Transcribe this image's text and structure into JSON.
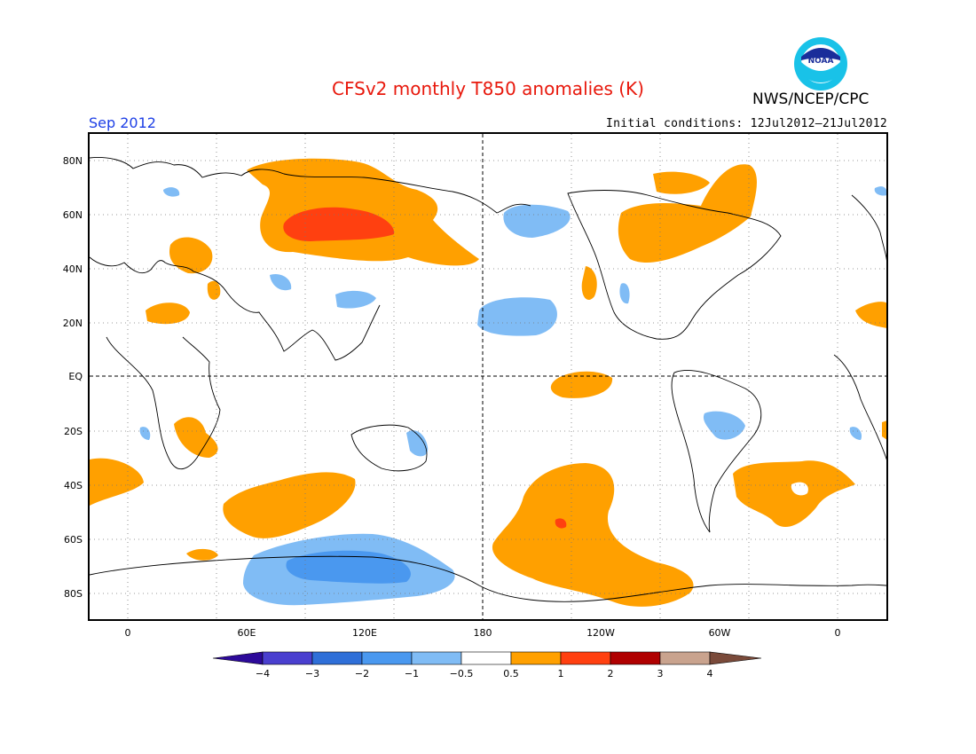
{
  "header": {
    "title": "CFSv2 monthly T850 anomalies (K)",
    "agency": "NWS/NCEP/CPC",
    "logo_text": "NOAA",
    "month": "Sep 2012",
    "initial_conditions": "Initial conditions: 12Jul2012–21Jul2012"
  },
  "axes": {
    "lat_labels": [
      "80N",
      "60N",
      "40N",
      "20N",
      "EQ",
      "20S",
      "40S",
      "60S",
      "80S"
    ],
    "lon_labels": [
      "0",
      "60E",
      "120E",
      "180",
      "120W",
      "60W",
      "0"
    ]
  },
  "colorbar": {
    "labels": [
      "−4",
      "−3",
      "−2",
      "−1",
      "−0.5",
      "0.5",
      "1",
      "2",
      "3",
      "4"
    ],
    "colors": [
      "#2d0a9a",
      "#4a3fcf",
      "#2f6fd8",
      "#4a98ef",
      "#80bcf5",
      "#ffffff",
      "#ffa000",
      "#ff4010",
      "#b00000",
      "#c9a38e",
      "#7a4a3a"
    ]
  },
  "colors": {
    "warm_weak": "#ffa000",
    "warm_mid": "#ff4010",
    "cool_weak": "#80bcf5",
    "cool_mid": "#4a98ef",
    "title": "#e8180c",
    "month": "#1d3fe6"
  }
}
